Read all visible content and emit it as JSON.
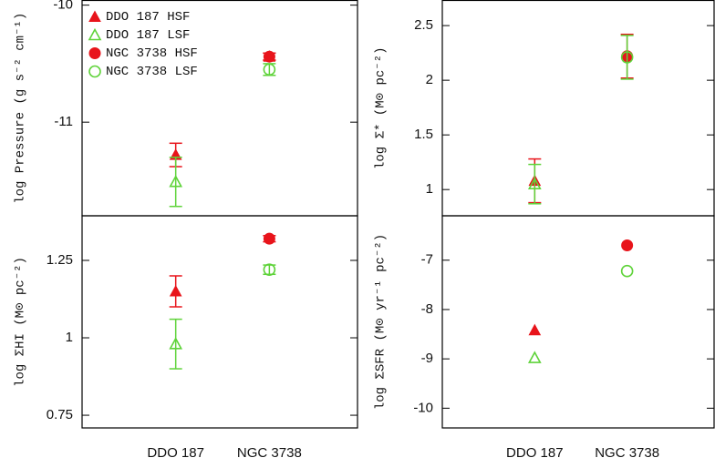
{
  "chart_data": [
    {
      "type": "errorbar",
      "ylabel": "log Pressure (g s⁻² cm⁻¹)",
      "ylim": [
        -11.8,
        -9.96
      ],
      "yticks": [
        -10,
        -11
      ],
      "legend": "upper left",
      "series": [
        {
          "name": "DDO 187 HSF",
          "color": "#e8141b",
          "marker": "triangle",
          "values": [
            -11.28,
            -10.44
          ],
          "errors": [
            0.1,
            0.03
          ]
        },
        {
          "name": "DDO 187 LSF",
          "color": "#5fd33a",
          "marker": "triangle-open",
          "values": [
            -11.51,
            null
          ],
          "errors": [
            0.21,
            null
          ]
        },
        {
          "name": "NGC 3738 HSF",
          "color": "#e8141b",
          "marker": "circle",
          "values": [
            null,
            -10.44
          ],
          "errors": [
            null,
            0.03
          ]
        },
        {
          "name": "NGC 3738 LSF",
          "color": "#5fd33a",
          "marker": "circle-open",
          "values": [
            null,
            -10.55
          ],
          "errors": [
            null,
            0.05
          ]
        }
      ]
    },
    {
      "type": "errorbar",
      "ylabel": "log Σ* (M⊙ pc⁻²)",
      "ylim": [
        0.76,
        2.73
      ],
      "yticks": [
        1,
        1.5,
        2,
        2.5
      ],
      "series": [
        {
          "color": "#e8141b",
          "marker": "triangle",
          "values": [
            1.08,
            null
          ],
          "errors": [
            0.2,
            null
          ]
        },
        {
          "color": "#5fd33a",
          "marker": "triangle-open",
          "values": [
            1.05,
            null
          ],
          "errors": [
            0.18,
            null
          ]
        },
        {
          "color": "#e8141b",
          "marker": "circle",
          "values": [
            null,
            2.22
          ],
          "errors": [
            null,
            0.2
          ]
        },
        {
          "color": "#5fd33a",
          "marker": "circle-open",
          "values": [
            null,
            2.21
          ],
          "errors": [
            null,
            0.2
          ]
        }
      ]
    },
    {
      "type": "errorbar",
      "ylabel": "log ΣHI (M⊙ pc⁻²)",
      "ylim": [
        0.709,
        1.394
      ],
      "yticks": [
        0.75,
        1,
        1.25
      ],
      "categories": [
        "DDO 187",
        "NGC 3738"
      ],
      "series": [
        {
          "color": "#e8141b",
          "marker": "triangle",
          "values": [
            1.15,
            null
          ],
          "errors": [
            0.05,
            null
          ]
        },
        {
          "color": "#5fd33a",
          "marker": "triangle-open",
          "values": [
            0.98,
            null
          ],
          "errors": [
            0.08,
            null
          ]
        },
        {
          "color": "#e8141b",
          "marker": "circle",
          "values": [
            null,
            1.32
          ],
          "errors": [
            null,
            0.01
          ]
        },
        {
          "color": "#5fd33a",
          "marker": "circle-open",
          "values": [
            null,
            1.22
          ],
          "errors": [
            null,
            0.015
          ]
        }
      ]
    },
    {
      "type": "errorbar",
      "ylabel": "log ΣSFR (M⊙ yr⁻¹ pc⁻²)",
      "ylim": [
        -10.4,
        -6.1
      ],
      "yticks": [
        -10,
        -9,
        -8,
        -7
      ],
      "categories": [
        "DDO 187",
        "NGC 3738"
      ],
      "series": [
        {
          "color": "#e8141b",
          "marker": "triangle",
          "values": [
            -8.42,
            null
          ]
        },
        {
          "color": "#5fd33a",
          "marker": "triangle-open",
          "values": [
            -8.98,
            null
          ]
        },
        {
          "color": "#e8141b",
          "marker": "circle",
          "values": [
            null,
            -6.7
          ]
        },
        {
          "color": "#5fd33a",
          "marker": "circle-open",
          "values": [
            null,
            -7.22
          ]
        }
      ]
    }
  ]
}
